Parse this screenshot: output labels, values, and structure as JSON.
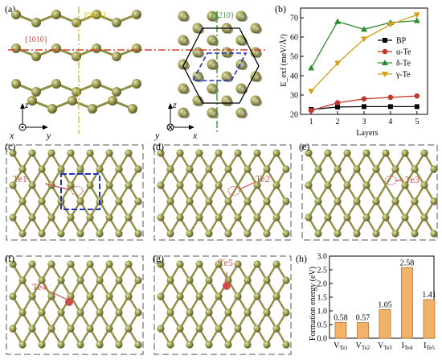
{
  "panels": {
    "a": "(a)",
    "b": "(b)",
    "c": "(c)",
    "d": "(d)",
    "e": "(e)",
    "f": "(f)",
    "g": "(g)",
    "h": "(h)"
  },
  "panel_a": {
    "dir_0001": "[0001]",
    "dir_1010": "{10̅1̅0}",
    "dir_1010_text": "{1010}",
    "dir_1210_text": "{1210}",
    "axes_left": {
      "z": "z",
      "x": "x",
      "y": "y"
    },
    "axes_right": {
      "z": "z",
      "x": "x",
      "y": "y"
    }
  },
  "defect_labels": {
    "c": "Te1",
    "d": "Te2",
    "e": "Te3",
    "f": "Te4",
    "g": "Te5"
  },
  "colors": {
    "atom": "#9a9a50",
    "atom_dark": "#6e6e30",
    "bond": "#8f8f45",
    "defect": "#d04a4a",
    "bar": "#f2b26a",
    "bp": "#000000",
    "alpha": "#c0392b",
    "delta": "#2e8b2e",
    "gamma": "#d4a017",
    "dir_0001": "#d9c21a",
    "dir_1010": "#d9402f",
    "dir_1210": "#2ea02e",
    "cell": "#2233bb"
  },
  "chart_data": [
    {
      "type": "line",
      "x": [
        1,
        2,
        3,
        4,
        5
      ],
      "xlabel": "Layers",
      "ylabel": "E_exf (meV/Å²)",
      "xlim": [
        0.6,
        5.4
      ],
      "ylim": [
        20,
        75
      ],
      "yticks": [
        20,
        30,
        40,
        50,
        60,
        70
      ],
      "xticks": [
        1,
        2,
        3,
        4,
        5
      ],
      "legend_position": "right",
      "series": [
        {
          "name": "BP",
          "values": [
            22.5,
            23.8,
            24.0,
            24.0,
            24.0
          ],
          "color": "#000000",
          "marker": "square"
        },
        {
          "name": "α-Te",
          "values": [
            22.0,
            26.0,
            28.0,
            28.8,
            29.5
          ],
          "color": "#c0392b",
          "marker": "circle"
        },
        {
          "name": "δ-Te",
          "values": [
            44.0,
            68.0,
            64.0,
            67.5,
            68.5
          ],
          "color": "#2e8b2e",
          "marker": "triangle-up"
        },
        {
          "name": "γ-Te",
          "values": [
            32.0,
            46.5,
            59.0,
            66.5,
            71.5
          ],
          "color": "#d4a017",
          "marker": "triangle-down"
        }
      ]
    },
    {
      "type": "bar",
      "categories": [
        "VTe1",
        "VTe2",
        "VTe3",
        "ITe4",
        "ITe5"
      ],
      "values": [
        0.58,
        0.57,
        1.05,
        2.58,
        1.41
      ],
      "value_labels": [
        "0.58",
        "0.57",
        "1.05",
        "2.58",
        "1.41"
      ],
      "ylabel": "Formation energy (eV)",
      "xlabel": "",
      "ylim": [
        0.0,
        3.0
      ],
      "yticks": [
        "0.0",
        "0.5",
        "1.0",
        "1.5",
        "2.0",
        "2.5",
        "3.0"
      ]
    }
  ]
}
